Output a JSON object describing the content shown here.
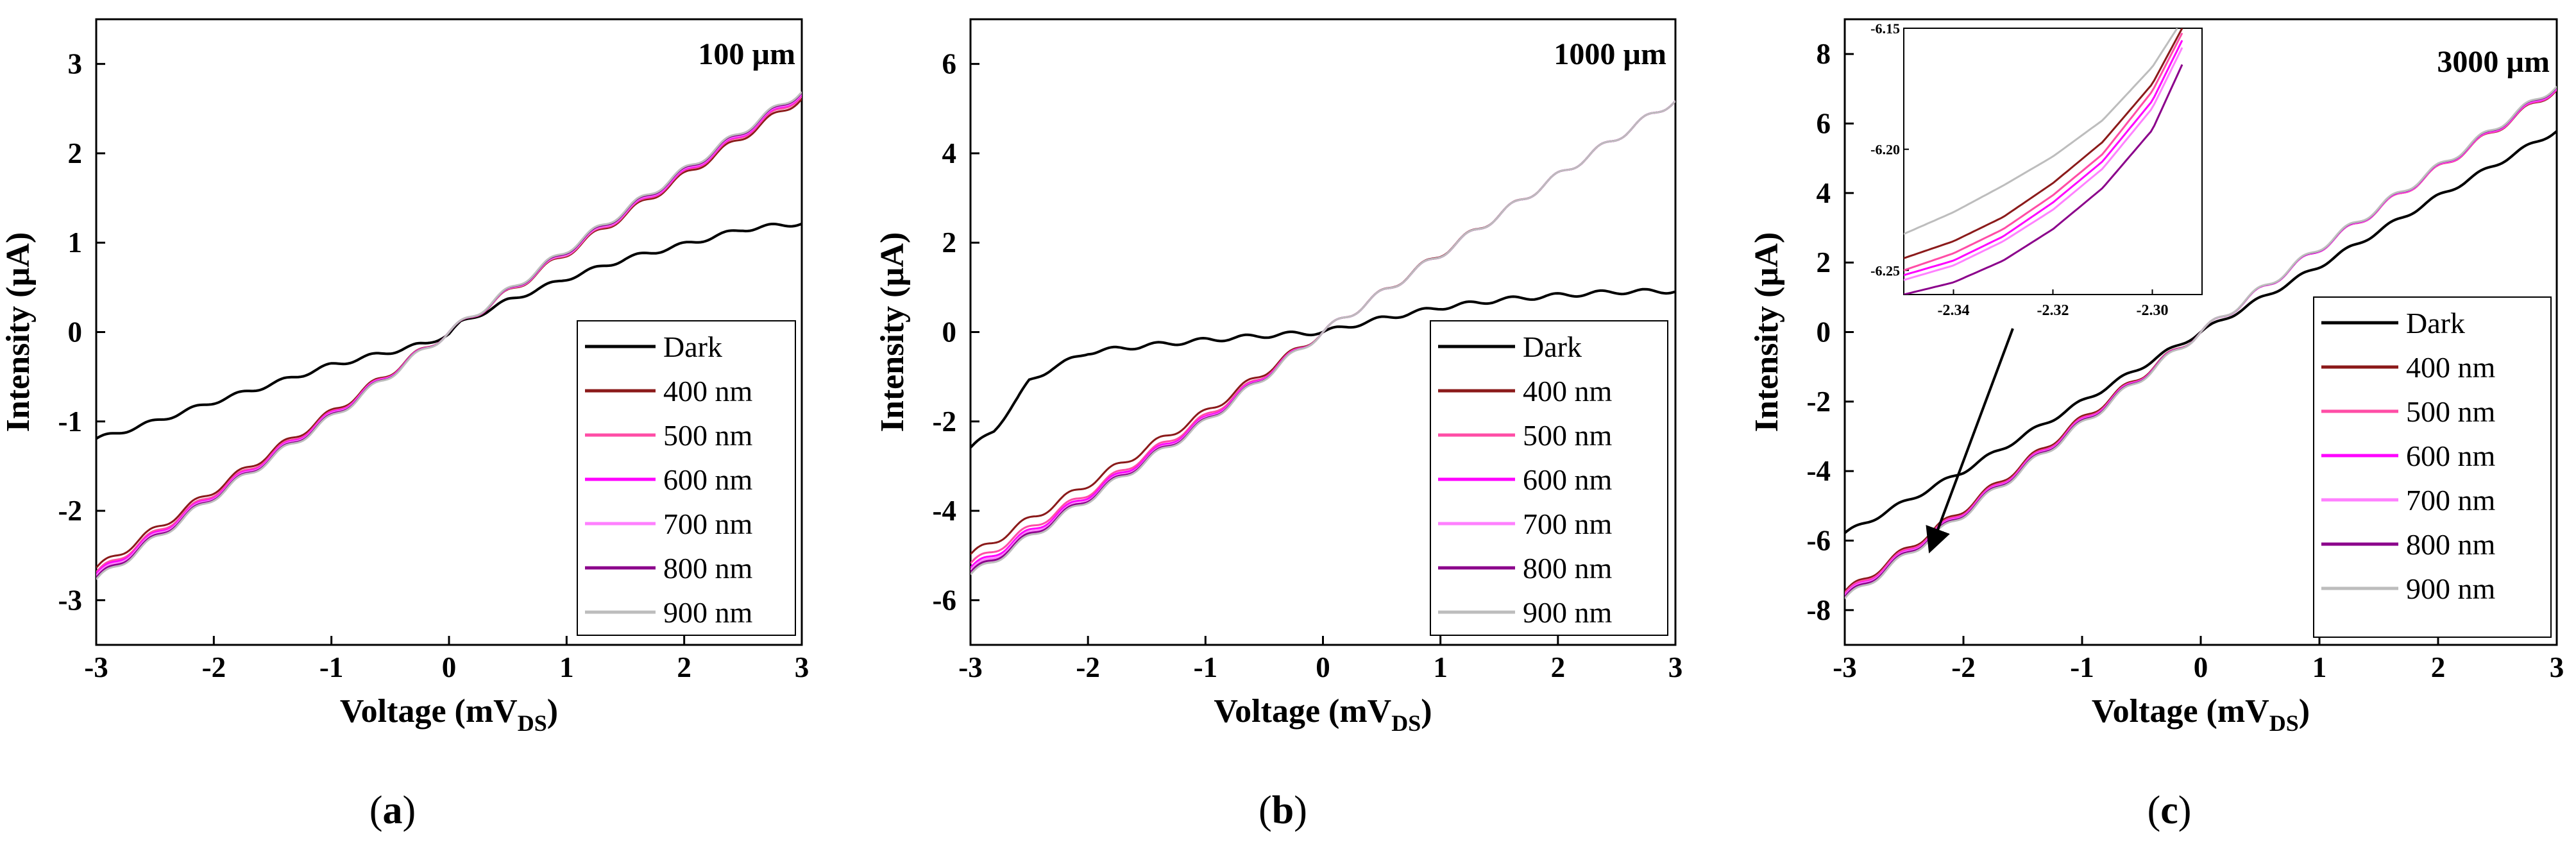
{
  "chart_data": [
    {
      "panel": "a",
      "type": "line",
      "annotation": "100 µm",
      "panel_label_open": "(",
      "panel_label_letter": "a",
      "panel_label_close": ")",
      "xlabel": "Voltage (mV",
      "xlabel_sub": "DS",
      "xlabel_close": ")",
      "ylabel": "Intensity (µA)",
      "xlim": [
        -3,
        3
      ],
      "ylim": [
        -3.5,
        3.5
      ],
      "xticks": [
        -3,
        -2,
        -1,
        0,
        1,
        2,
        3
      ],
      "yticks": [
        -3,
        -2,
        -1,
        0,
        1,
        2,
        3
      ],
      "series": [
        {
          "name": "Dark",
          "color": "#000000",
          "x": [
            -3,
            -2.5,
            -2,
            -1.5,
            -1,
            -0.5,
            -0.2,
            0,
            0.1,
            0.5,
            1,
            1.5,
            2,
            2.5,
            3
          ],
          "y": [
            -1.2,
            -1.0,
            -0.78,
            -0.58,
            -0.37,
            -0.22,
            -0.13,
            -0.02,
            0.1,
            0.35,
            0.6,
            0.82,
            0.98,
            1.15,
            1.22
          ]
        },
        {
          "name": "400 nm",
          "color": "#8b1a1a",
          "x": [
            -3,
            -2,
            -1,
            0,
            1,
            2,
            3
          ],
          "y": [
            -2.65,
            -1.77,
            -0.9,
            0.0,
            0.88,
            1.75,
            2.62
          ]
        },
        {
          "name": "500 nm",
          "color": "#ff4da6",
          "x": [
            -3,
            -2,
            -1,
            0,
            1,
            2,
            3
          ],
          "y": [
            -2.7,
            -1.8,
            -0.92,
            0.0,
            0.89,
            1.77,
            2.65
          ]
        },
        {
          "name": "600 nm",
          "color": "#ff00ff",
          "x": [
            -3,
            -2,
            -1,
            0,
            1,
            2,
            3
          ],
          "y": [
            -2.72,
            -1.82,
            -0.93,
            0.0,
            0.9,
            1.78,
            2.67
          ]
        },
        {
          "name": "700 nm",
          "color": "#ff80ff",
          "x": [
            -3,
            -2,
            -1,
            0,
            1,
            2,
            3
          ],
          "y": [
            -2.74,
            -1.83,
            -0.94,
            0.0,
            0.9,
            1.79,
            2.68
          ]
        },
        {
          "name": "800 nm",
          "color": "#8b008b",
          "x": [
            -3,
            -2,
            -1,
            0,
            1,
            2,
            3
          ],
          "y": [
            -2.76,
            -1.84,
            -0.95,
            0.0,
            0.91,
            1.8,
            2.69
          ]
        },
        {
          "name": "900 nm",
          "color": "#bdbdbd",
          "x": [
            -3,
            -2,
            -1,
            0,
            1,
            2,
            3
          ],
          "y": [
            -2.78,
            -1.85,
            -0.96,
            0.0,
            0.92,
            1.81,
            2.7
          ]
        }
      ]
    },
    {
      "panel": "b",
      "type": "line",
      "annotation": "1000 µm",
      "panel_label_open": "(",
      "panel_label_letter": "b",
      "panel_label_close": ")",
      "xlabel": "Voltage (mV",
      "xlabel_sub": "DS",
      "xlabel_close": ")",
      "ylabel": "Intensity (µA)",
      "xlim": [
        -3,
        3
      ],
      "ylim": [
        -7,
        7
      ],
      "xticks": [
        -3,
        -2,
        -1,
        0,
        1,
        2,
        3
      ],
      "yticks": [
        -6,
        -4,
        -2,
        0,
        2,
        4,
        6
      ],
      "series": [
        {
          "name": "Dark",
          "color": "#000000",
          "x": [
            -3,
            -2.8,
            -2.6,
            -2.5,
            -2.3,
            -2,
            -1.5,
            -1,
            -0.5,
            0,
            0.5,
            1,
            1.5,
            2,
            2.5,
            3
          ],
          "y": [
            -2.6,
            -2.2,
            -1.5,
            -1.1,
            -0.8,
            -0.45,
            -0.3,
            -0.18,
            -0.08,
            0.0,
            0.3,
            0.55,
            0.72,
            0.82,
            0.9,
            0.92
          ]
        },
        {
          "name": "400 nm",
          "color": "#8b1a1a",
          "x": [
            -3,
            -2,
            -1,
            0,
            1,
            2,
            3
          ],
          "y": [
            -5.0,
            -3.4,
            -1.8,
            0.0,
            1.75,
            3.5,
            5.2
          ]
        },
        {
          "name": "500 nm",
          "color": "#ff4da6",
          "x": [
            -3,
            -2,
            -1,
            0,
            1,
            2,
            3
          ],
          "y": [
            -5.2,
            -3.6,
            -1.9,
            0.0,
            1.74,
            3.5,
            5.2
          ]
        },
        {
          "name": "600 nm",
          "color": "#ff00ff",
          "x": [
            -3,
            -2,
            -1,
            0,
            1,
            2,
            3
          ],
          "y": [
            -5.3,
            -3.65,
            -1.95,
            0.0,
            1.74,
            3.5,
            5.2
          ]
        },
        {
          "name": "700 nm",
          "color": "#ff80ff",
          "x": [
            -3,
            -2,
            -1,
            0,
            1,
            2,
            3
          ],
          "y": [
            -5.35,
            -3.7,
            -1.98,
            0.0,
            1.74,
            3.5,
            5.2
          ]
        },
        {
          "name": "800 nm",
          "color": "#8b008b",
          "x": [
            -3,
            -2,
            -1,
            0,
            1,
            2,
            3
          ],
          "y": [
            -5.4,
            -3.72,
            -2.0,
            0.0,
            1.74,
            3.5,
            5.2
          ]
        },
        {
          "name": "900 nm",
          "color": "#bdbdbd",
          "x": [
            -3,
            -2,
            -1,
            0,
            1,
            2,
            3
          ],
          "y": [
            -5.45,
            -3.75,
            -2.02,
            0.0,
            1.74,
            3.5,
            5.2
          ]
        }
      ]
    },
    {
      "panel": "c",
      "type": "line",
      "annotation": "3000 µm",
      "panel_label_open": "(",
      "panel_label_letter": "c",
      "panel_label_close": ")",
      "xlabel": "Voltage (mV",
      "xlabel_sub": "DS",
      "xlabel_close": ")",
      "ylabel": "Intensity (µA)",
      "xlim": [
        -3,
        3
      ],
      "ylim": [
        -9,
        9
      ],
      "xticks": [
        -3,
        -2,
        -1,
        0,
        1,
        2,
        3
      ],
      "yticks": [
        -8,
        -6,
        -4,
        -2,
        0,
        2,
        4,
        6,
        8
      ],
      "series": [
        {
          "name": "Dark",
          "color": "#000000",
          "x": [
            -3,
            -2,
            -1,
            0,
            1,
            2,
            3
          ],
          "y": [
            -5.8,
            -4.0,
            -2.0,
            0.0,
            1.9,
            3.9,
            5.8
          ]
        },
        {
          "name": "400 nm",
          "color": "#8b1a1a",
          "x": [
            -3,
            -2,
            -1,
            0,
            1,
            2,
            3
          ],
          "y": [
            -7.5,
            -5.1,
            -2.5,
            0.0,
            2.4,
            4.7,
            7.0
          ]
        },
        {
          "name": "500 nm",
          "color": "#ff4da6",
          "x": [
            -3,
            -2,
            -1,
            0,
            1,
            2,
            3
          ],
          "y": [
            -7.55,
            -5.15,
            -2.55,
            0.0,
            2.4,
            4.7,
            7.02
          ]
        },
        {
          "name": "600 nm",
          "color": "#ff00ff",
          "x": [
            -3,
            -2,
            -1,
            0,
            1,
            2,
            3
          ],
          "y": [
            -7.6,
            -5.18,
            -2.58,
            0.0,
            2.4,
            4.72,
            7.04
          ]
        },
        {
          "name": "700 nm",
          "color": "#ff80ff",
          "x": [
            -3,
            -2,
            -1,
            0,
            1,
            2,
            3
          ],
          "y": [
            -7.62,
            -5.2,
            -2.6,
            0.0,
            2.41,
            4.73,
            7.06
          ]
        },
        {
          "name": "800 nm",
          "color": "#8b008b",
          "x": [
            -3,
            -2,
            -1,
            0,
            1,
            2,
            3
          ],
          "y": [
            -7.65,
            -5.22,
            -2.62,
            0.0,
            2.42,
            4.74,
            7.08
          ]
        },
        {
          "name": "900 nm",
          "color": "#bdbdbd",
          "x": [
            -3,
            -2,
            -1,
            0,
            1,
            2,
            3
          ],
          "y": [
            -7.7,
            -5.25,
            -2.65,
            0.0,
            2.43,
            4.75,
            7.1
          ]
        }
      ],
      "inset": {
        "xlim": [
          -2.35,
          -2.29
        ],
        "ylim": [
          -6.26,
          -6.15
        ],
        "xticks": [
          -2.34,
          -2.32,
          -2.3
        ],
        "xtick_labels": [
          "-2.34",
          "-2.32",
          "-2.30"
        ],
        "yticks": [
          -6.15,
          -6.2,
          -6.25
        ],
        "ytick_labels": [
          "-6.15",
          "-6.20",
          "-6.25"
        ],
        "series": [
          {
            "name": "900 nm",
            "color": "#bdbdbd",
            "x": [
              -2.35,
              -2.34,
              -2.33,
              -2.32,
              -2.31,
              -2.3,
              -2.295
            ],
            "y": [
              -6.235,
              -6.226,
              -6.215,
              -6.203,
              -6.188,
              -6.166,
              -6.15
            ]
          },
          {
            "name": "400 nm",
            "color": "#8b1a1a",
            "x": [
              -2.35,
              -2.34,
              -2.33,
              -2.32,
              -2.31,
              -2.3,
              -2.294
            ],
            "y": [
              -6.245,
              -6.238,
              -6.228,
              -6.214,
              -6.197,
              -6.173,
              -6.15
            ]
          },
          {
            "name": "500 nm",
            "color": "#ff4da6",
            "x": [
              -2.35,
              -2.34,
              -2.33,
              -2.32,
              -2.31,
              -2.3,
              -2.294
            ],
            "y": [
              -6.25,
              -6.243,
              -6.233,
              -6.219,
              -6.202,
              -6.176,
              -6.152
            ]
          },
          {
            "name": "600 nm",
            "color": "#ff00ff",
            "x": [
              -2.35,
              -2.34,
              -2.33,
              -2.32,
              -2.31,
              -2.3,
              -2.294
            ],
            "y": [
              -6.252,
              -6.246,
              -6.236,
              -6.222,
              -6.205,
              -6.18,
              -6.155
            ]
          },
          {
            "name": "700 nm",
            "color": "#ff80ff",
            "x": [
              -2.35,
              -2.34,
              -2.33,
              -2.32,
              -2.31,
              -2.3,
              -2.294
            ],
            "y": [
              -6.254,
              -6.248,
              -6.238,
              -6.225,
              -6.208,
              -6.183,
              -6.158
            ]
          },
          {
            "name": "800 nm",
            "color": "#8b008b",
            "x": [
              -2.35,
              -2.34,
              -2.33,
              -2.32,
              -2.31,
              -2.3,
              -2.294
            ],
            "y": [
              -6.26,
              -6.255,
              -6.246,
              -6.233,
              -6.216,
              -6.192,
              -6.165
            ]
          }
        ]
      }
    }
  ]
}
